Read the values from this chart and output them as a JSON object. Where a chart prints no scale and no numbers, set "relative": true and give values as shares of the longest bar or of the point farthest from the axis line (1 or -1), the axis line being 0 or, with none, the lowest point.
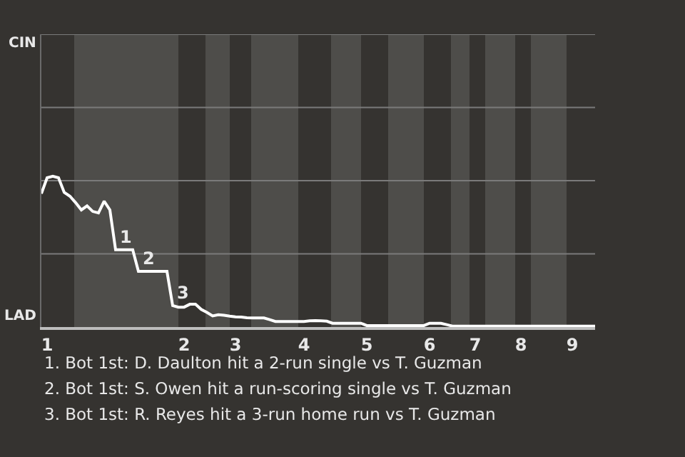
{
  "chart_data": {
    "type": "line",
    "relative": true,
    "categories": [
      null,
      "1",
      null,
      null,
      null,
      null,
      null,
      null,
      null,
      null,
      null,
      null,
      null,
      null,
      null,
      null,
      null,
      null,
      null,
      null,
      null,
      null,
      null,
      null,
      null,
      "2",
      null,
      null,
      null,
      null,
      null,
      null,
      null,
      null,
      "3",
      null,
      null,
      null,
      null,
      null,
      null,
      null,
      null,
      null,
      null,
      null,
      "4",
      null,
      null,
      null,
      null,
      null,
      null,
      null,
      null,
      null,
      null,
      "5",
      null,
      null,
      null,
      null,
      null,
      null,
      null,
      null,
      null,
      null,
      "6",
      null,
      null,
      null,
      null,
      null,
      null,
      null,
      "7",
      null,
      null,
      null,
      null,
      null,
      null,
      null,
      "8",
      null,
      null,
      null,
      null,
      null,
      null,
      null,
      null,
      "9",
      null,
      null,
      null,
      null
    ],
    "series": [
      {
        "color": "#ffffff",
        "values": [
          0.885,
          0.99,
          1,
          0.99,
          0.893,
          0.868,
          0.825,
          0.777,
          0.804,
          0.767,
          0.757,
          0.835,
          0.777,
          0.513,
          0.513,
          0.513,
          0.513,
          0.369,
          0.369,
          0.369,
          0.369,
          0.369,
          0.369,
          0.142,
          0.132,
          0.132,
          0.151,
          0.151,
          0.117,
          0.097,
          0.074,
          0.082,
          0.078,
          0.072,
          0.068,
          0.066,
          0.062,
          0.06,
          0.06,
          0.06,
          0.049,
          0.037,
          0.037,
          0.037,
          0.037,
          0.037,
          0.037,
          0.041,
          0.043,
          0.041,
          0.039,
          0.025,
          0.025,
          0.025,
          0.025,
          0.025,
          0.025,
          0.01,
          0.01,
          0.01,
          0.01,
          0.01,
          0.01,
          0.01,
          0.01,
          0.01,
          0.01,
          0.01,
          0.025,
          0.025,
          0.025,
          0.016,
          0.006,
          0.006,
          0.006,
          0.006,
          0.006,
          0.006,
          0.006,
          0.006,
          0.006,
          0.006,
          0.006,
          0.006,
          0.006,
          0.006,
          0.006,
          0.006,
          0.006,
          0.006,
          0.006,
          0.006,
          0.006,
          0.006,
          0.006,
          0.006,
          0.006,
          0.006
        ]
      }
    ],
    "marker": "none",
    "line_style": "solid",
    "ref_lines": [
      {
        "axis": "y",
        "value": 0.485,
        "color": "#7a7a7a"
      },
      {
        "axis": "y",
        "value": 0.971,
        "color": "#7a7a7a"
      },
      {
        "axis": "y",
        "value": 1.456,
        "color": "#7a7a7a"
      },
      {
        "axis": "y",
        "value": 1.942,
        "color": "#7a7a7a"
      }
    ],
    "annotations": [
      {
        "text": "1",
        "y": 0.513
      },
      {
        "text": "2",
        "y": 0.369
      },
      {
        "text": "3",
        "y": 0.142
      },
      "CIN",
      "LAD",
      "1. Bot 1st: D. Daulton hit a 2-run single vs T. Guzman",
      "2. Bot 1st: S. Owen hit a run-scoring single vs T. Guzman",
      "3. Bot 1st: R. Reyes hit a 3-run home run vs T. Guzman"
    ]
  }
}
